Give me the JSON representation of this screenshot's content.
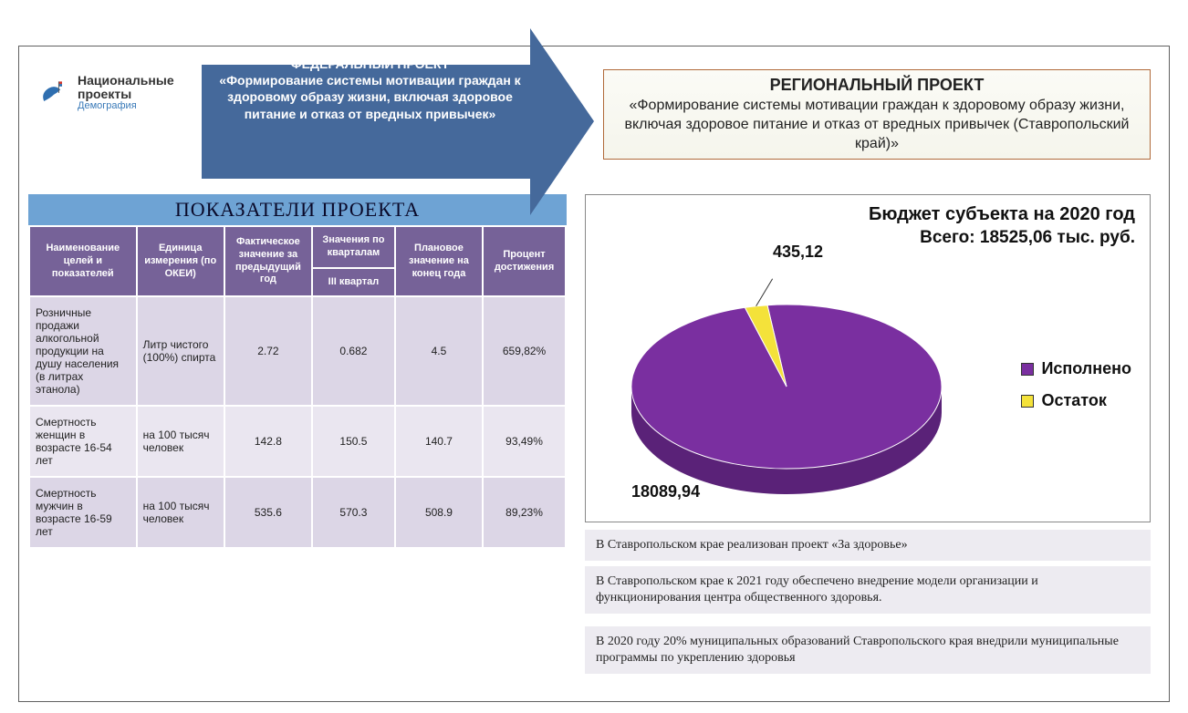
{
  "logo": {
    "line1": "Национальные",
    "line2": "проекты",
    "line3": "Демография",
    "bird_color": "#2f6fb0",
    "flag_red": "#d43a2f",
    "flag_blue": "#2f6fb0"
  },
  "federal": {
    "heading": "ФЕДЕРАЛЬНЫЙ ПРОЕКТ",
    "body": "«Формирование системы мотивации граждан к здоровому образу жизни, включая здоровое питание и отказ от вредных привычек»",
    "fill": "#45699b",
    "text_color": "#ffffff"
  },
  "regional": {
    "heading": "РЕГИОНАЛЬНЫЙ ПРОЕКТ",
    "body": "«Формирование системы мотивации граждан к здоровому образу жизни, включая здоровое питание и отказ от вредных привычек (Ставропольский край)»",
    "border_color": "#b06a3a",
    "bg_top": "#fbfbf6",
    "bg_bottom": "#f5f5ec"
  },
  "section_header": {
    "text": "ПОКАЗАТЕЛИ  ПРОЕКТА",
    "bg": "#6ea3d4",
    "font": "Times New Roman"
  },
  "table": {
    "header_bg": "#766298",
    "header_fg": "#ffffff",
    "row_odd_bg": "#dcd6e6",
    "row_even_bg": "#eae6f0",
    "columns": [
      "Наименование целей и показателей",
      "Единица измерения (по ОКЕИ)",
      "Фактическое значение за предыдущий год",
      "Значения по кварталам",
      "Плановое значение на конец года",
      "Процент достижения"
    ],
    "sub_column": "III квартал",
    "rows": [
      {
        "name": "Розничные продажи алкогольной продукции на душу населения (в литрах этанола)",
        "unit": "Литр чистого (100%) спирта",
        "prev": "2.72",
        "q3": "0.682",
        "plan": "4.5",
        "pct": "659,82%"
      },
      {
        "name": "Смертность женщин в возрасте  16-54 лет",
        "unit": "на 100 тысяч человек",
        "prev": "142.8",
        "q3": "150.5",
        "plan": "140.7",
        "pct": "93,49%"
      },
      {
        "name": "Смертность мужчин в возрасте  16-59 лет",
        "unit": "на 100 тысяч человек",
        "prev": "535.6",
        "q3": "570.3",
        "plan": "508.9",
        "pct": "89,23%"
      }
    ]
  },
  "chart": {
    "type": "pie3d",
    "title_line1": "Бюджет субъекта на 2020 год",
    "title_line2": "Всего: 18525,06 тыс. руб.",
    "slices": [
      {
        "label": "Исполнено",
        "value": 18089.94,
        "value_text": "18089,94",
        "color": "#7a2fa0",
        "side_color": "#5a2278"
      },
      {
        "label": "Остаток",
        "value": 435.12,
        "value_text": "435,12",
        "color": "#f4e23a",
        "side_color": "#c9b820"
      }
    ],
    "legend_marker_border": "#333333",
    "background": "#ffffff",
    "label_fontsize": 18,
    "title_fontsize": 20
  },
  "notes": {
    "bg": "#edebf1",
    "items": [
      "В Ставропольском крае реализован проект «За здоровье»",
      "В Ставропольском крае к 2021 году обеспечено внедрение модели организации и функционирования центра общественного здоровья.",
      "В 2020 году 20% муниципальных образований Ставропольского края внедрили муниципальные программы по укреплению здоровья"
    ]
  }
}
